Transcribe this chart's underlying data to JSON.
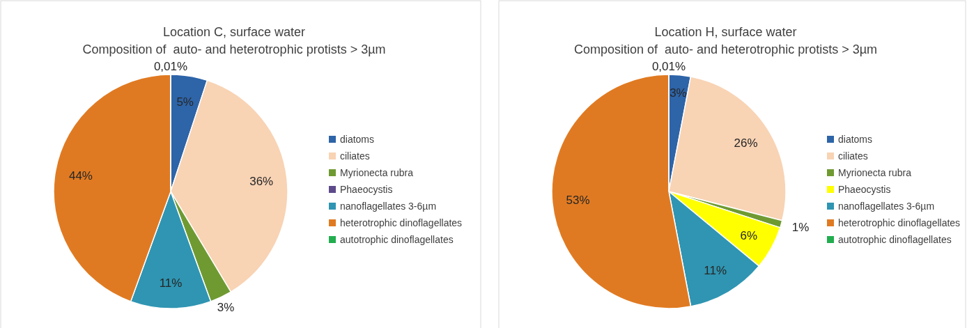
{
  "chart_data": [
    {
      "type": "pie",
      "title": "Location C, surface water",
      "subtitle": "Composition of  auto- and heterotrophic protists > 3µm",
      "categories": [
        "diatoms",
        "ciliates",
        "Myrionecta rubra",
        "Phaeocystis",
        "nanoflagellates 3-6µm",
        "heterotrophic dinoflagellates",
        "autotrophic dinoflagellates"
      ],
      "values": [
        5,
        36,
        3,
        0,
        11,
        44,
        0.01
      ],
      "colors": [
        "#2e64a8",
        "#f8d3b4",
        "#6f9a32",
        "#5d4a8a",
        "#2f95b2",
        "#e07a22",
        "#22ad4f"
      ],
      "value_labels": [
        "5%",
        "36%",
        "3%",
        null,
        "11%",
        "44%",
        "0,01%"
      ],
      "legend": "right"
    },
    {
      "type": "pie",
      "title": "Location H, surface water",
      "subtitle": "Composition of  auto- and heterotrophic protists > 3µm",
      "categories": [
        "diatoms",
        "ciliates",
        "Myrionecta rubra",
        "Phaeocystis",
        "nanoflagellates 3-6µm",
        "heterotrophic dinoflagellates",
        "autotrophic dinoflagellates"
      ],
      "values": [
        3,
        26,
        1,
        6,
        11,
        53,
        0.01
      ],
      "colors": [
        "#2e64a8",
        "#f8d3b4",
        "#6f9a32",
        "#ffff00",
        "#2f95b2",
        "#e07a22",
        "#22ad4f"
      ],
      "value_labels": [
        "3%",
        "26%",
        "1%",
        "6%",
        "11%",
        "53%",
        "0,01%"
      ],
      "legend": "right"
    }
  ]
}
